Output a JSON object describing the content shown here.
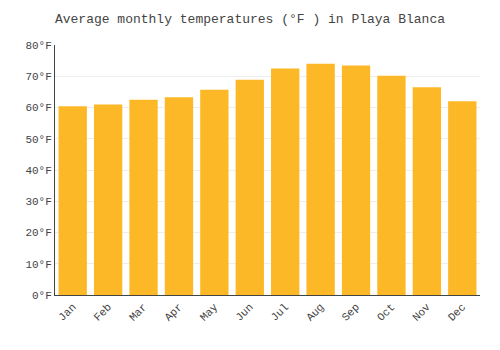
{
  "chart_data": {
    "type": "bar",
    "title": "Average monthly temperatures (°F ) in Playa Blanca",
    "categories": [
      "Jan",
      "Feb",
      "Mar",
      "Apr",
      "May",
      "Jun",
      "Jul",
      "Aug",
      "Sep",
      "Oct",
      "Nov",
      "Dec"
    ],
    "values": [
      60.4,
      61.0,
      62.5,
      63.3,
      65.7,
      68.9,
      72.5,
      74.0,
      73.4,
      70.2,
      66.5,
      62.0
    ],
    "color": "#FDB827",
    "ylim": [
      0,
      80
    ],
    "yticks": [
      {
        "value": 0,
        "label": "0°F"
      },
      {
        "value": 10,
        "label": "10°F"
      },
      {
        "value": 20,
        "label": "20°F"
      },
      {
        "value": 30,
        "label": "30°F"
      },
      {
        "value": 40,
        "label": "40°F"
      },
      {
        "value": 50,
        "label": "50°F"
      },
      {
        "value": 60,
        "label": "60°F"
      },
      {
        "value": 70,
        "label": "70°F"
      },
      {
        "value": 80,
        "label": "80°F"
      }
    ],
    "grid": true
  }
}
